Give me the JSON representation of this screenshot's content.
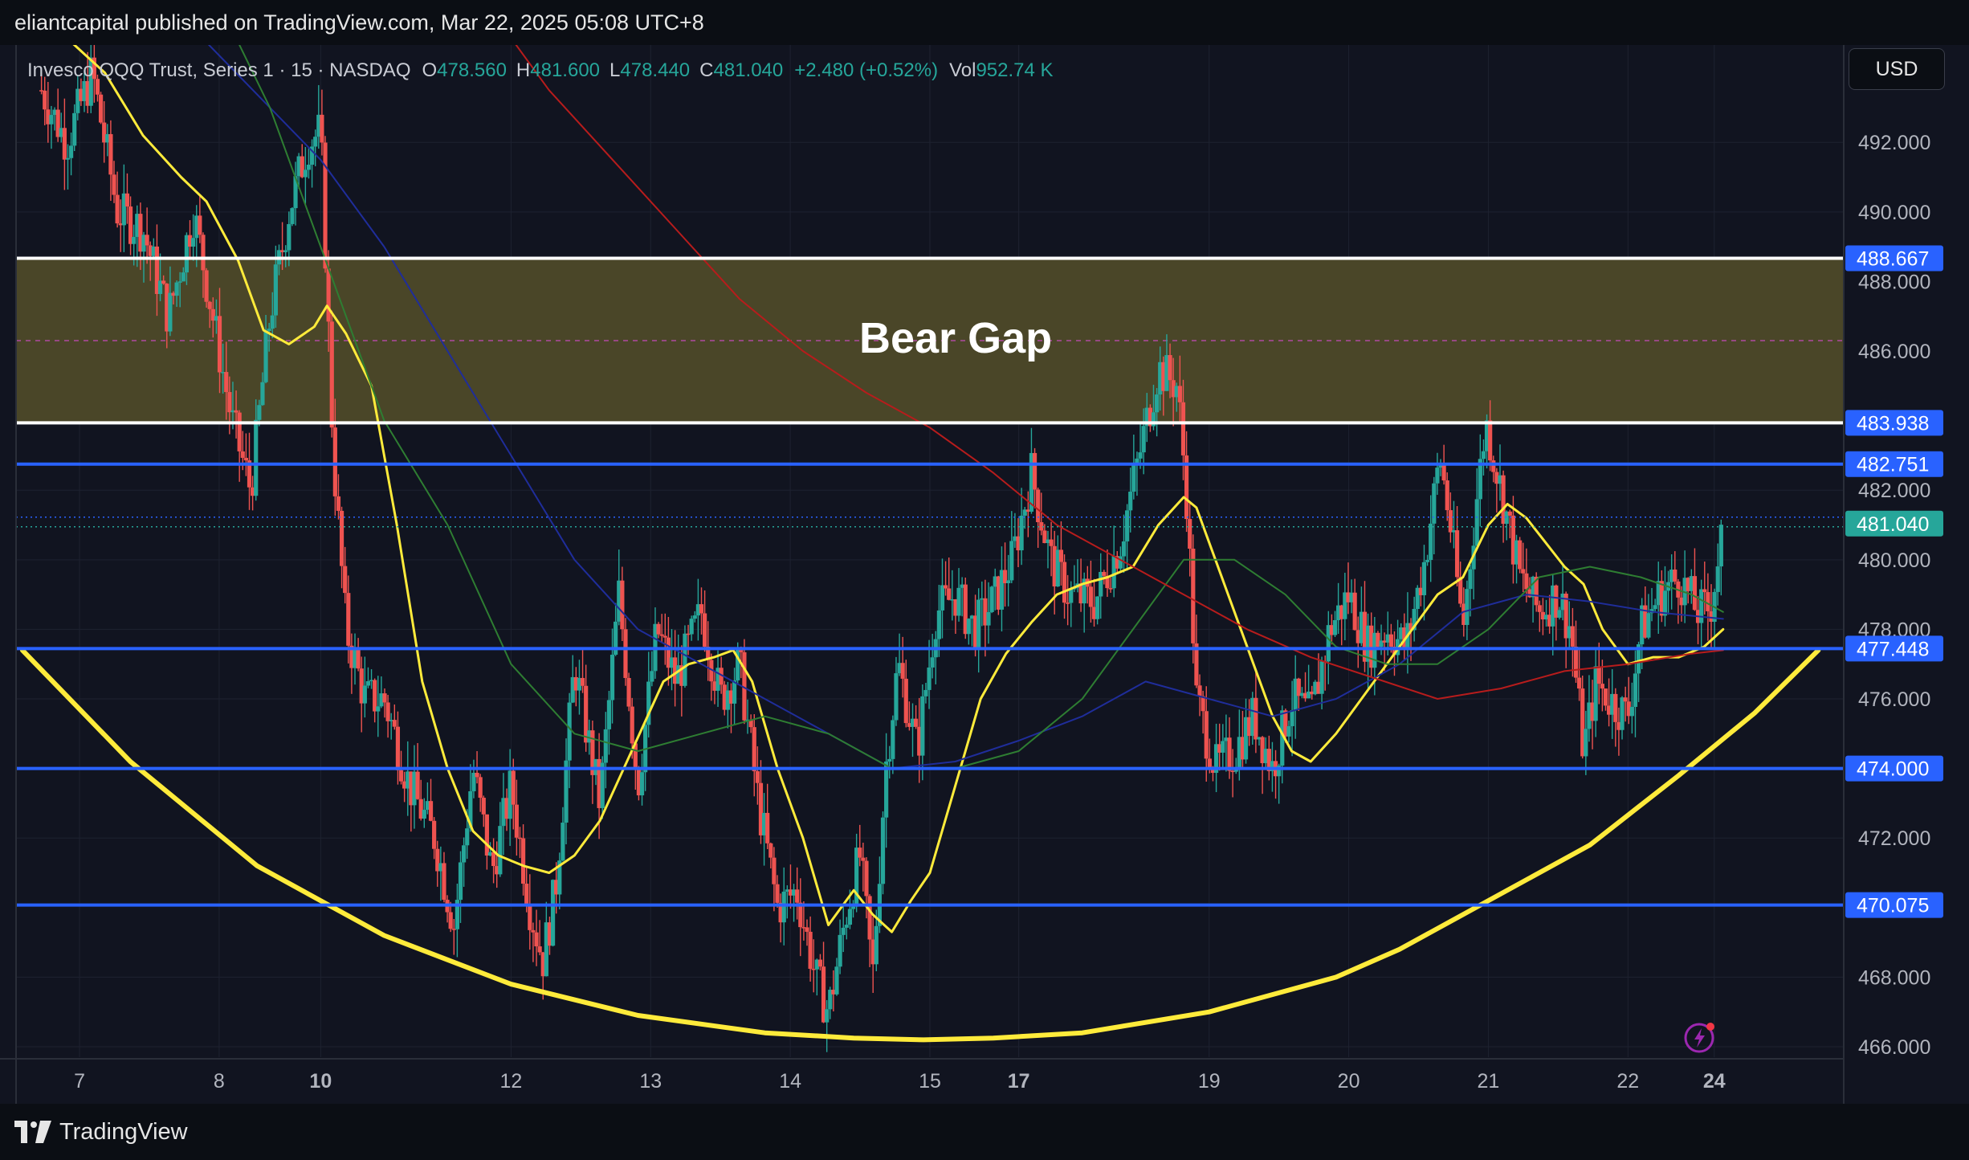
{
  "header": {
    "publisher_text": "eliantcapital published on TradingView.com, Mar 22, 2025 05:08 UTC+8"
  },
  "currency_button": "USD",
  "legend": {
    "symbol": "Invesco QQQ Trust, Series 1 · 15 · NASDAQ",
    "open_label": "O",
    "open": "478.560",
    "high_label": "H",
    "high": "481.600",
    "low_label": "L",
    "low": "478.440",
    "close_label": "C",
    "close": "481.040",
    "change": "+2.480 (+0.52%)",
    "vol_label": "Vol",
    "vol": "952.74 K"
  },
  "footer": {
    "brand": "TradingView"
  },
  "colors": {
    "background": "#111420",
    "bull": "#26a69a",
    "bear": "#ef5350",
    "level_line": "#2962ff",
    "gap_fill": "#4a4628",
    "ma_fast": "#ffeb3b",
    "ma_blue": "#1e2a8a",
    "ma_green": "#2e7d32",
    "ma_red": "#b71c1c"
  },
  "icons": {
    "alert": "lightning-alert-icon",
    "logo": "tradingview-logo-icon"
  },
  "chart_data": {
    "type": "candlestick",
    "title": "",
    "xlabel": "",
    "ylabel": "",
    "x_ticks": [
      {
        "label": "7",
        "bold": false,
        "x": 0.1
      },
      {
        "label": "8",
        "bold": false,
        "x": 1.2
      },
      {
        "label": "10",
        "bold": true,
        "x": 2.0
      },
      {
        "label": "12",
        "bold": false,
        "x": 3.5
      },
      {
        "label": "13",
        "bold": false,
        "x": 4.6
      },
      {
        "label": "14",
        "bold": false,
        "x": 5.7
      },
      {
        "label": "15",
        "bold": false,
        "x": 6.8
      },
      {
        "label": "17",
        "bold": true,
        "x": 7.5
      },
      {
        "label": "19",
        "bold": false,
        "x": 9.0
      },
      {
        "label": "20",
        "bold": false,
        "x": 10.1
      },
      {
        "label": "21",
        "bold": false,
        "x": 11.2
      },
      {
        "label": "22",
        "bold": false,
        "x": 12.3
      },
      {
        "label": "24",
        "bold": true,
        "x": 12.98
      }
    ],
    "x_range": [
      -0.4,
      14.0
    ],
    "y_range": [
      465.7,
      494.8
    ],
    "y_ticks": [
      "492.000",
      "490.000",
      "488.000",
      "486.000",
      "482.000",
      "480.000",
      "478.000",
      "476.000",
      "474.000",
      "472.000",
      "468.000",
      "466.000"
    ],
    "levels": [
      {
        "value": 488.667,
        "label": "488.667",
        "color": "#ffffff"
      },
      {
        "value": 483.938,
        "label": "483.938",
        "color": "#ffffff"
      },
      {
        "value": 482.751,
        "label": "482.751",
        "color": "#2962ff"
      },
      {
        "value": 477.448,
        "label": "477.448",
        "color": "#2962ff"
      },
      {
        "value": 474.0,
        "label": "474.000",
        "color": "#2962ff"
      },
      {
        "value": 470.075,
        "label": "470.075",
        "color": "#2962ff"
      }
    ],
    "last_price": {
      "value": 481.04,
      "label": "481.040"
    },
    "gap_zone": {
      "from": 483.938,
      "to": 488.667,
      "mid": 486.3,
      "label": "Bear Gap"
    },
    "price_path": [
      [
        -0.2,
        493.5
      ],
      [
        0.0,
        492.0
      ],
      [
        0.2,
        494.0
      ],
      [
        0.4,
        490.0
      ],
      [
        0.6,
        489.5
      ],
      [
        0.8,
        487.0
      ],
      [
        1.0,
        490.0
      ],
      [
        1.15,
        487.0
      ],
      [
        1.3,
        484.0
      ],
      [
        1.45,
        482.0
      ],
      [
        1.6,
        487.0
      ],
      [
        1.75,
        490.0
      ],
      [
        1.9,
        492.0
      ],
      [
        2.0,
        492.3
      ],
      [
        2.1,
        483.0
      ],
      [
        2.2,
        478.0
      ],
      [
        2.35,
        476.0
      ],
      [
        2.5,
        476.0
      ],
      [
        2.7,
        473.5
      ],
      [
        2.9,
        472.0
      ],
      [
        3.05,
        469.5
      ],
      [
        3.2,
        474.0
      ],
      [
        3.35,
        471.0
      ],
      [
        3.5,
        473.5
      ],
      [
        3.65,
        470.0
      ],
      [
        3.75,
        468.5
      ],
      [
        3.85,
        470.5
      ],
      [
        4.0,
        477.0
      ],
      [
        4.2,
        473.0
      ],
      [
        4.35,
        479.0
      ],
      [
        4.5,
        473.5
      ],
      [
        4.65,
        478.0
      ],
      [
        4.8,
        476.5
      ],
      [
        5.0,
        478.5
      ],
      [
        5.15,
        476.0
      ],
      [
        5.3,
        477.0
      ],
      [
        5.45,
        473.0
      ],
      [
        5.6,
        470.0
      ],
      [
        5.75,
        470.5
      ],
      [
        5.9,
        468.0
      ],
      [
        6.0,
        467.0
      ],
      [
        6.15,
        470.0
      ],
      [
        6.25,
        471.5
      ],
      [
        6.35,
        468.0
      ],
      [
        6.45,
        474.0
      ],
      [
        6.55,
        477.0
      ],
      [
        6.7,
        474.5
      ],
      [
        6.85,
        478.5
      ],
      [
        7.0,
        479.0
      ],
      [
        7.15,
        478.0
      ],
      [
        7.3,
        478.8
      ],
      [
        7.45,
        480.0
      ],
      [
        7.6,
        482.5
      ],
      [
        7.75,
        480.0
      ],
      [
        7.9,
        479.0
      ],
      [
        8.1,
        478.8
      ],
      [
        8.3,
        480.5
      ],
      [
        8.45,
        483.0
      ],
      [
        8.6,
        485.5
      ],
      [
        8.75,
        485.0
      ],
      [
        8.82,
        482.0
      ],
      [
        8.9,
        476.0
      ],
      [
        9.05,
        474.0
      ],
      [
        9.2,
        474.5
      ],
      [
        9.35,
        475.5
      ],
      [
        9.5,
        474.0
      ],
      [
        9.65,
        476.0
      ],
      [
        9.8,
        475.5
      ],
      [
        9.95,
        478.0
      ],
      [
        10.1,
        479.0
      ],
      [
        10.25,
        477.5
      ],
      [
        10.4,
        478.0
      ],
      [
        10.55,
        477.5
      ],
      [
        10.7,
        480.0
      ],
      [
        10.82,
        483.0
      ],
      [
        10.9,
        481.0
      ],
      [
        11.0,
        478.0
      ],
      [
        11.1,
        481.5
      ],
      [
        11.18,
        484.0
      ],
      [
        11.3,
        482.0
      ],
      [
        11.45,
        479.5
      ],
      [
        11.6,
        478.5
      ],
      [
        11.75,
        479.0
      ],
      [
        11.85,
        478.0
      ],
      [
        11.95,
        474.5
      ],
      [
        12.05,
        476.5
      ],
      [
        12.15,
        476.0
      ],
      [
        12.3,
        475.5
      ],
      [
        12.4,
        478.0
      ],
      [
        12.55,
        479.0
      ],
      [
        12.7,
        479.5
      ],
      [
        12.85,
        478.5
      ],
      [
        12.95,
        478.6
      ],
      [
        13.05,
        481.0
      ]
    ],
    "series": [
      {
        "name": "",
        "color": "#ffeb3b",
        "width": 3,
        "x": [
          0.0,
          0.3,
          0.6,
          0.9,
          1.1,
          1.35,
          1.55,
          1.75,
          1.95,
          2.05,
          2.2,
          2.4,
          2.6,
          2.8,
          3.0,
          3.2,
          3.4,
          3.6,
          3.8,
          4.0,
          4.2,
          4.45,
          4.7,
          4.9,
          5.1,
          5.25,
          5.4,
          5.6,
          5.8,
          6.0,
          6.2,
          6.35,
          6.5,
          6.65,
          6.8,
          7.0,
          7.2,
          7.4,
          7.6,
          7.8,
          8.0,
          8.2,
          8.4,
          8.6,
          8.8,
          8.9,
          9.05,
          9.2,
          9.35,
          9.5,
          9.65,
          9.8,
          10.0,
          10.2,
          10.4,
          10.6,
          10.8,
          11.0,
          11.2,
          11.35,
          11.5,
          11.65,
          11.8,
          11.95,
          12.1,
          12.3,
          12.5,
          12.7,
          12.9,
          13.05
        ],
        "y": [
          495.0,
          494.0,
          492.2,
          491.0,
          490.3,
          488.6,
          486.6,
          486.2,
          486.7,
          487.3,
          486.5,
          485.0,
          481.0,
          476.5,
          474.0,
          472.2,
          471.5,
          471.2,
          471.0,
          471.5,
          472.5,
          474.5,
          476.5,
          477.0,
          477.2,
          477.4,
          476.5,
          474.0,
          472.0,
          469.5,
          470.5,
          469.8,
          469.3,
          470.2,
          471.0,
          473.5,
          476.0,
          477.3,
          478.2,
          479.0,
          479.3,
          479.5,
          479.8,
          481.0,
          481.8,
          481.5,
          480.0,
          478.5,
          477.0,
          475.5,
          474.5,
          474.2,
          475.0,
          476.0,
          477.0,
          478.0,
          479.0,
          479.5,
          481.0,
          481.6,
          481.2,
          480.5,
          479.8,
          479.3,
          478.0,
          477.0,
          477.2,
          477.2,
          477.5,
          478.0
        ]
      },
      {
        "name": "",
        "color": "#1f2d9a",
        "width": 2,
        "x": [
          0.8,
          1.2,
          1.6,
          2.0,
          2.5,
          3.0,
          3.5,
          4.0,
          4.5,
          5.0,
          5.5,
          6.0,
          6.5,
          7.0,
          7.5,
          8.0,
          8.5,
          9.0,
          9.5,
          10.0,
          10.5,
          11.0,
          11.5,
          12.0,
          12.5,
          13.05
        ],
        "y": [
          496.0,
          494.5,
          493.0,
          491.5,
          489.0,
          486.0,
          483.0,
          480.0,
          478.0,
          477.0,
          476.0,
          475.0,
          474.0,
          474.2,
          474.8,
          475.5,
          476.5,
          476.0,
          475.5,
          476.0,
          477.0,
          478.5,
          479.0,
          478.8,
          478.5,
          478.3
        ]
      },
      {
        "name": "",
        "color": "#2e7d32",
        "width": 2,
        "x": [
          1.2,
          1.6,
          2.0,
          2.5,
          3.0,
          3.5,
          4.0,
          4.5,
          5.0,
          5.5,
          6.0,
          6.5,
          7.0,
          7.5,
          8.0,
          8.4,
          8.8,
          9.2,
          9.6,
          10.0,
          10.4,
          10.8,
          11.2,
          11.6,
          12.0,
          12.4,
          12.8,
          13.05
        ],
        "y": [
          496.0,
          493.0,
          489.0,
          484.0,
          481.0,
          477.0,
          475.0,
          474.5,
          475.0,
          475.5,
          475.0,
          474.0,
          474.0,
          474.5,
          476.0,
          478.0,
          480.0,
          480.0,
          479.0,
          477.5,
          477.0,
          477.0,
          478.0,
          479.5,
          479.8,
          479.5,
          479.0,
          478.5
        ]
      },
      {
        "name": "",
        "color": "#b71c1c",
        "width": 2,
        "x": [
          3.3,
          3.8,
          4.3,
          4.8,
          5.3,
          5.8,
          6.3,
          6.8,
          7.3,
          7.8,
          8.3,
          8.8,
          9.3,
          9.8,
          10.3,
          10.8,
          11.3,
          11.8,
          12.3,
          12.8,
          13.05
        ],
        "y": [
          496.0,
          493.5,
          491.5,
          489.5,
          487.5,
          486.0,
          484.8,
          483.8,
          482.5,
          481.0,
          480.0,
          479.0,
          478.0,
          477.2,
          476.6,
          476.0,
          476.3,
          476.8,
          477.0,
          477.3,
          477.4
        ]
      },
      {
        "name": "",
        "color": "#ffeb3b",
        "width": 6,
        "x": [
          -0.35,
          0.5,
          1.5,
          2.5,
          3.5,
          4.5,
          5.5,
          6.2,
          6.75,
          7.3,
          8.0,
          9.0,
          10.0,
          10.5,
          11.0,
          12.0,
          12.7,
          13.3,
          13.8
        ],
        "y": [
          477.4,
          474.2,
          471.2,
          469.2,
          467.8,
          466.9,
          466.4,
          466.25,
          466.2,
          466.25,
          466.4,
          467.0,
          468.0,
          468.8,
          469.8,
          471.8,
          473.8,
          475.6,
          477.4
        ]
      }
    ]
  }
}
